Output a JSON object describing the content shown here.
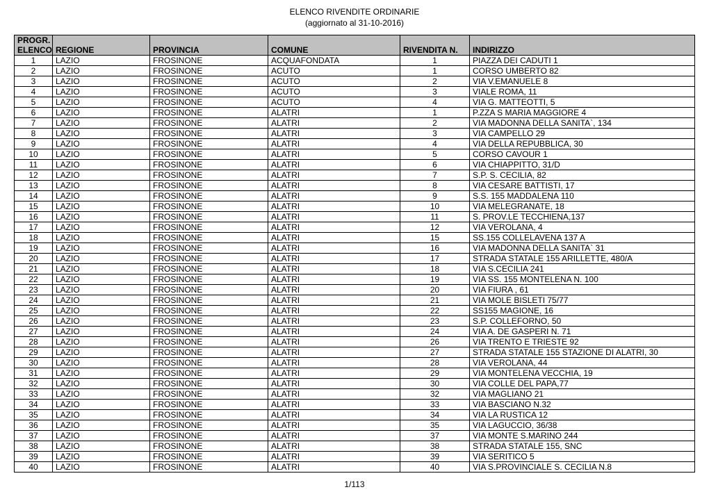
{
  "title": "ELENCO RIVENDITE ORDINARIE",
  "subtitle": "(aggiornato al 31-10-2016)",
  "footer": "1/113",
  "columns": {
    "progr": "PROGR. ELENCO",
    "regione": "REGIONE",
    "provincia": "PROVINCIA",
    "comune": "COMUNE",
    "rivendita": "RIVENDITA N.",
    "indirizzo": "INDIRIZZO"
  },
  "rows": [
    {
      "progr": "1",
      "regione": "LAZIO",
      "provincia": "FROSINONE",
      "comune": "ACQUAFONDATA",
      "rivendita": "1",
      "indirizzo": "PIAZZA DEI CADUTI 1"
    },
    {
      "progr": "2",
      "regione": "LAZIO",
      "provincia": "FROSINONE",
      "comune": "ACUTO",
      "rivendita": "1",
      "indirizzo": "CORSO UMBERTO 82"
    },
    {
      "progr": "3",
      "regione": "LAZIO",
      "provincia": "FROSINONE",
      "comune": "ACUTO",
      "rivendita": "2",
      "indirizzo": "VIA V.EMANUELE 8"
    },
    {
      "progr": "4",
      "regione": "LAZIO",
      "provincia": "FROSINONE",
      "comune": "ACUTO",
      "rivendita": "3",
      "indirizzo": "VIALE ROMA, 11"
    },
    {
      "progr": "5",
      "regione": "LAZIO",
      "provincia": "FROSINONE",
      "comune": "ACUTO",
      "rivendita": "4",
      "indirizzo": "VIA G. MATTEOTTI, 5"
    },
    {
      "progr": "6",
      "regione": "LAZIO",
      "provincia": "FROSINONE",
      "comune": "ALATRI",
      "rivendita": "1",
      "indirizzo": "P.ZZA S MARIA MAGGIORE 4"
    },
    {
      "progr": "7",
      "regione": "LAZIO",
      "provincia": "FROSINONE",
      "comune": "ALATRI",
      "rivendita": "2",
      "indirizzo": "VIA MADONNA DELLA SANITA`, 134"
    },
    {
      "progr": "8",
      "regione": "LAZIO",
      "provincia": "FROSINONE",
      "comune": "ALATRI",
      "rivendita": "3",
      "indirizzo": "VIA CAMPELLO 29"
    },
    {
      "progr": "9",
      "regione": "LAZIO",
      "provincia": "FROSINONE",
      "comune": "ALATRI",
      "rivendita": "4",
      "indirizzo": "VIA DELLA REPUBBLICA, 30"
    },
    {
      "progr": "10",
      "regione": "LAZIO",
      "provincia": "FROSINONE",
      "comune": "ALATRI",
      "rivendita": "5",
      "indirizzo": "CORSO CAVOUR 1"
    },
    {
      "progr": "11",
      "regione": "LAZIO",
      "provincia": "FROSINONE",
      "comune": "ALATRI",
      "rivendita": "6",
      "indirizzo": "VIA CHIAPPITTO, 31/D"
    },
    {
      "progr": "12",
      "regione": "LAZIO",
      "provincia": "FROSINONE",
      "comune": "ALATRI",
      "rivendita": "7",
      "indirizzo": "S.P. S. CECILIA, 82"
    },
    {
      "progr": "13",
      "regione": "LAZIO",
      "provincia": "FROSINONE",
      "comune": "ALATRI",
      "rivendita": "8",
      "indirizzo": "VIA CESARE BATTISTI, 17"
    },
    {
      "progr": "14",
      "regione": "LAZIO",
      "provincia": "FROSINONE",
      "comune": "ALATRI",
      "rivendita": "9",
      "indirizzo": "S.S. 155 MADDALENA 110"
    },
    {
      "progr": "15",
      "regione": "LAZIO",
      "provincia": "FROSINONE",
      "comune": "ALATRI",
      "rivendita": "10",
      "indirizzo": "VIA MELEGRANATE, 18"
    },
    {
      "progr": "16",
      "regione": "LAZIO",
      "provincia": "FROSINONE",
      "comune": "ALATRI",
      "rivendita": "11",
      "indirizzo": "S. PROV.LE TECCHIENA,137"
    },
    {
      "progr": "17",
      "regione": "LAZIO",
      "provincia": "FROSINONE",
      "comune": "ALATRI",
      "rivendita": "12",
      "indirizzo": "VIA VEROLANA, 4"
    },
    {
      "progr": "18",
      "regione": "LAZIO",
      "provincia": "FROSINONE",
      "comune": "ALATRI",
      "rivendita": "15",
      "indirizzo": "SS.155 COLLELAVENA 137 A"
    },
    {
      "progr": "19",
      "regione": "LAZIO",
      "provincia": "FROSINONE",
      "comune": "ALATRI",
      "rivendita": "16",
      "indirizzo": "VIA MADONNA DELLA SANITA` 31"
    },
    {
      "progr": "20",
      "regione": "LAZIO",
      "provincia": "FROSINONE",
      "comune": "ALATRI",
      "rivendita": "17",
      "indirizzo": "STRADA STATALE 155 ARILLETTE, 480/A"
    },
    {
      "progr": "21",
      "regione": "LAZIO",
      "provincia": "FROSINONE",
      "comune": "ALATRI",
      "rivendita": "18",
      "indirizzo": "VIA S.CECILIA 241"
    },
    {
      "progr": "22",
      "regione": "LAZIO",
      "provincia": "FROSINONE",
      "comune": "ALATRI",
      "rivendita": "19",
      "indirizzo": "VIA SS. 155 MONTELENA N. 100"
    },
    {
      "progr": "23",
      "regione": "LAZIO",
      "provincia": "FROSINONE",
      "comune": "ALATRI",
      "rivendita": "20",
      "indirizzo": "VIA FIURA , 61"
    },
    {
      "progr": "24",
      "regione": "LAZIO",
      "provincia": "FROSINONE",
      "comune": "ALATRI",
      "rivendita": "21",
      "indirizzo": "VIA MOLE BISLETI 75/77"
    },
    {
      "progr": "25",
      "regione": "LAZIO",
      "provincia": "FROSINONE",
      "comune": "ALATRI",
      "rivendita": "22",
      "indirizzo": "SS155 MAGIONE, 16"
    },
    {
      "progr": "26",
      "regione": "LAZIO",
      "provincia": "FROSINONE",
      "comune": "ALATRI",
      "rivendita": "23",
      "indirizzo": "S.P. COLLEFORNO, 50"
    },
    {
      "progr": "27",
      "regione": "LAZIO",
      "provincia": "FROSINONE",
      "comune": "ALATRI",
      "rivendita": "24",
      "indirizzo": "VIA A. DE GASPERI N. 71"
    },
    {
      "progr": "28",
      "regione": "LAZIO",
      "provincia": "FROSINONE",
      "comune": "ALATRI",
      "rivendita": "26",
      "indirizzo": "VIA TRENTO E TRIESTE 92"
    },
    {
      "progr": "29",
      "regione": "LAZIO",
      "provincia": "FROSINONE",
      "comune": "ALATRI",
      "rivendita": "27",
      "indirizzo": "STRADA STATALE 155 STAZIONE DI ALATRI, 30"
    },
    {
      "progr": "30",
      "regione": "LAZIO",
      "provincia": "FROSINONE",
      "comune": "ALATRI",
      "rivendita": "28",
      "indirizzo": "VIA VEROLANA, 44"
    },
    {
      "progr": "31",
      "regione": "LAZIO",
      "provincia": "FROSINONE",
      "comune": "ALATRI",
      "rivendita": "29",
      "indirizzo": "VIA MONTELENA VECCHIA, 19"
    },
    {
      "progr": "32",
      "regione": "LAZIO",
      "provincia": "FROSINONE",
      "comune": "ALATRI",
      "rivendita": "30",
      "indirizzo": "VIA COLLE DEL PAPA,77"
    },
    {
      "progr": "33",
      "regione": "LAZIO",
      "provincia": "FROSINONE",
      "comune": "ALATRI",
      "rivendita": "32",
      "indirizzo": "VIA MAGLIANO 21"
    },
    {
      "progr": "34",
      "regione": "LAZIO",
      "provincia": "FROSINONE",
      "comune": "ALATRI",
      "rivendita": "33",
      "indirizzo": "VIA BASCIANO N.32"
    },
    {
      "progr": "35",
      "regione": "LAZIO",
      "provincia": "FROSINONE",
      "comune": "ALATRI",
      "rivendita": "34",
      "indirizzo": "VIA LA RUSTICA 12"
    },
    {
      "progr": "36",
      "regione": "LAZIO",
      "provincia": "FROSINONE",
      "comune": "ALATRI",
      "rivendita": "35",
      "indirizzo": "VIA LAGUCCIO, 36/38"
    },
    {
      "progr": "37",
      "regione": "LAZIO",
      "provincia": "FROSINONE",
      "comune": "ALATRI",
      "rivendita": "37",
      "indirizzo": "VIA MONTE S.MARINO 244"
    },
    {
      "progr": "38",
      "regione": "LAZIO",
      "provincia": "FROSINONE",
      "comune": "ALATRI",
      "rivendita": "38",
      "indirizzo": "STRADA STATALE 155, SNC"
    },
    {
      "progr": "39",
      "regione": "LAZIO",
      "provincia": "FROSINONE",
      "comune": "ALATRI",
      "rivendita": "39",
      "indirizzo": "VIA SERITICO 5"
    },
    {
      "progr": "40",
      "regione": "LAZIO",
      "provincia": "FROSINONE",
      "comune": "ALATRI",
      "rivendita": "40",
      "indirizzo": "VIA S.PROVINCIALE S. CECILIA N.8"
    }
  ]
}
